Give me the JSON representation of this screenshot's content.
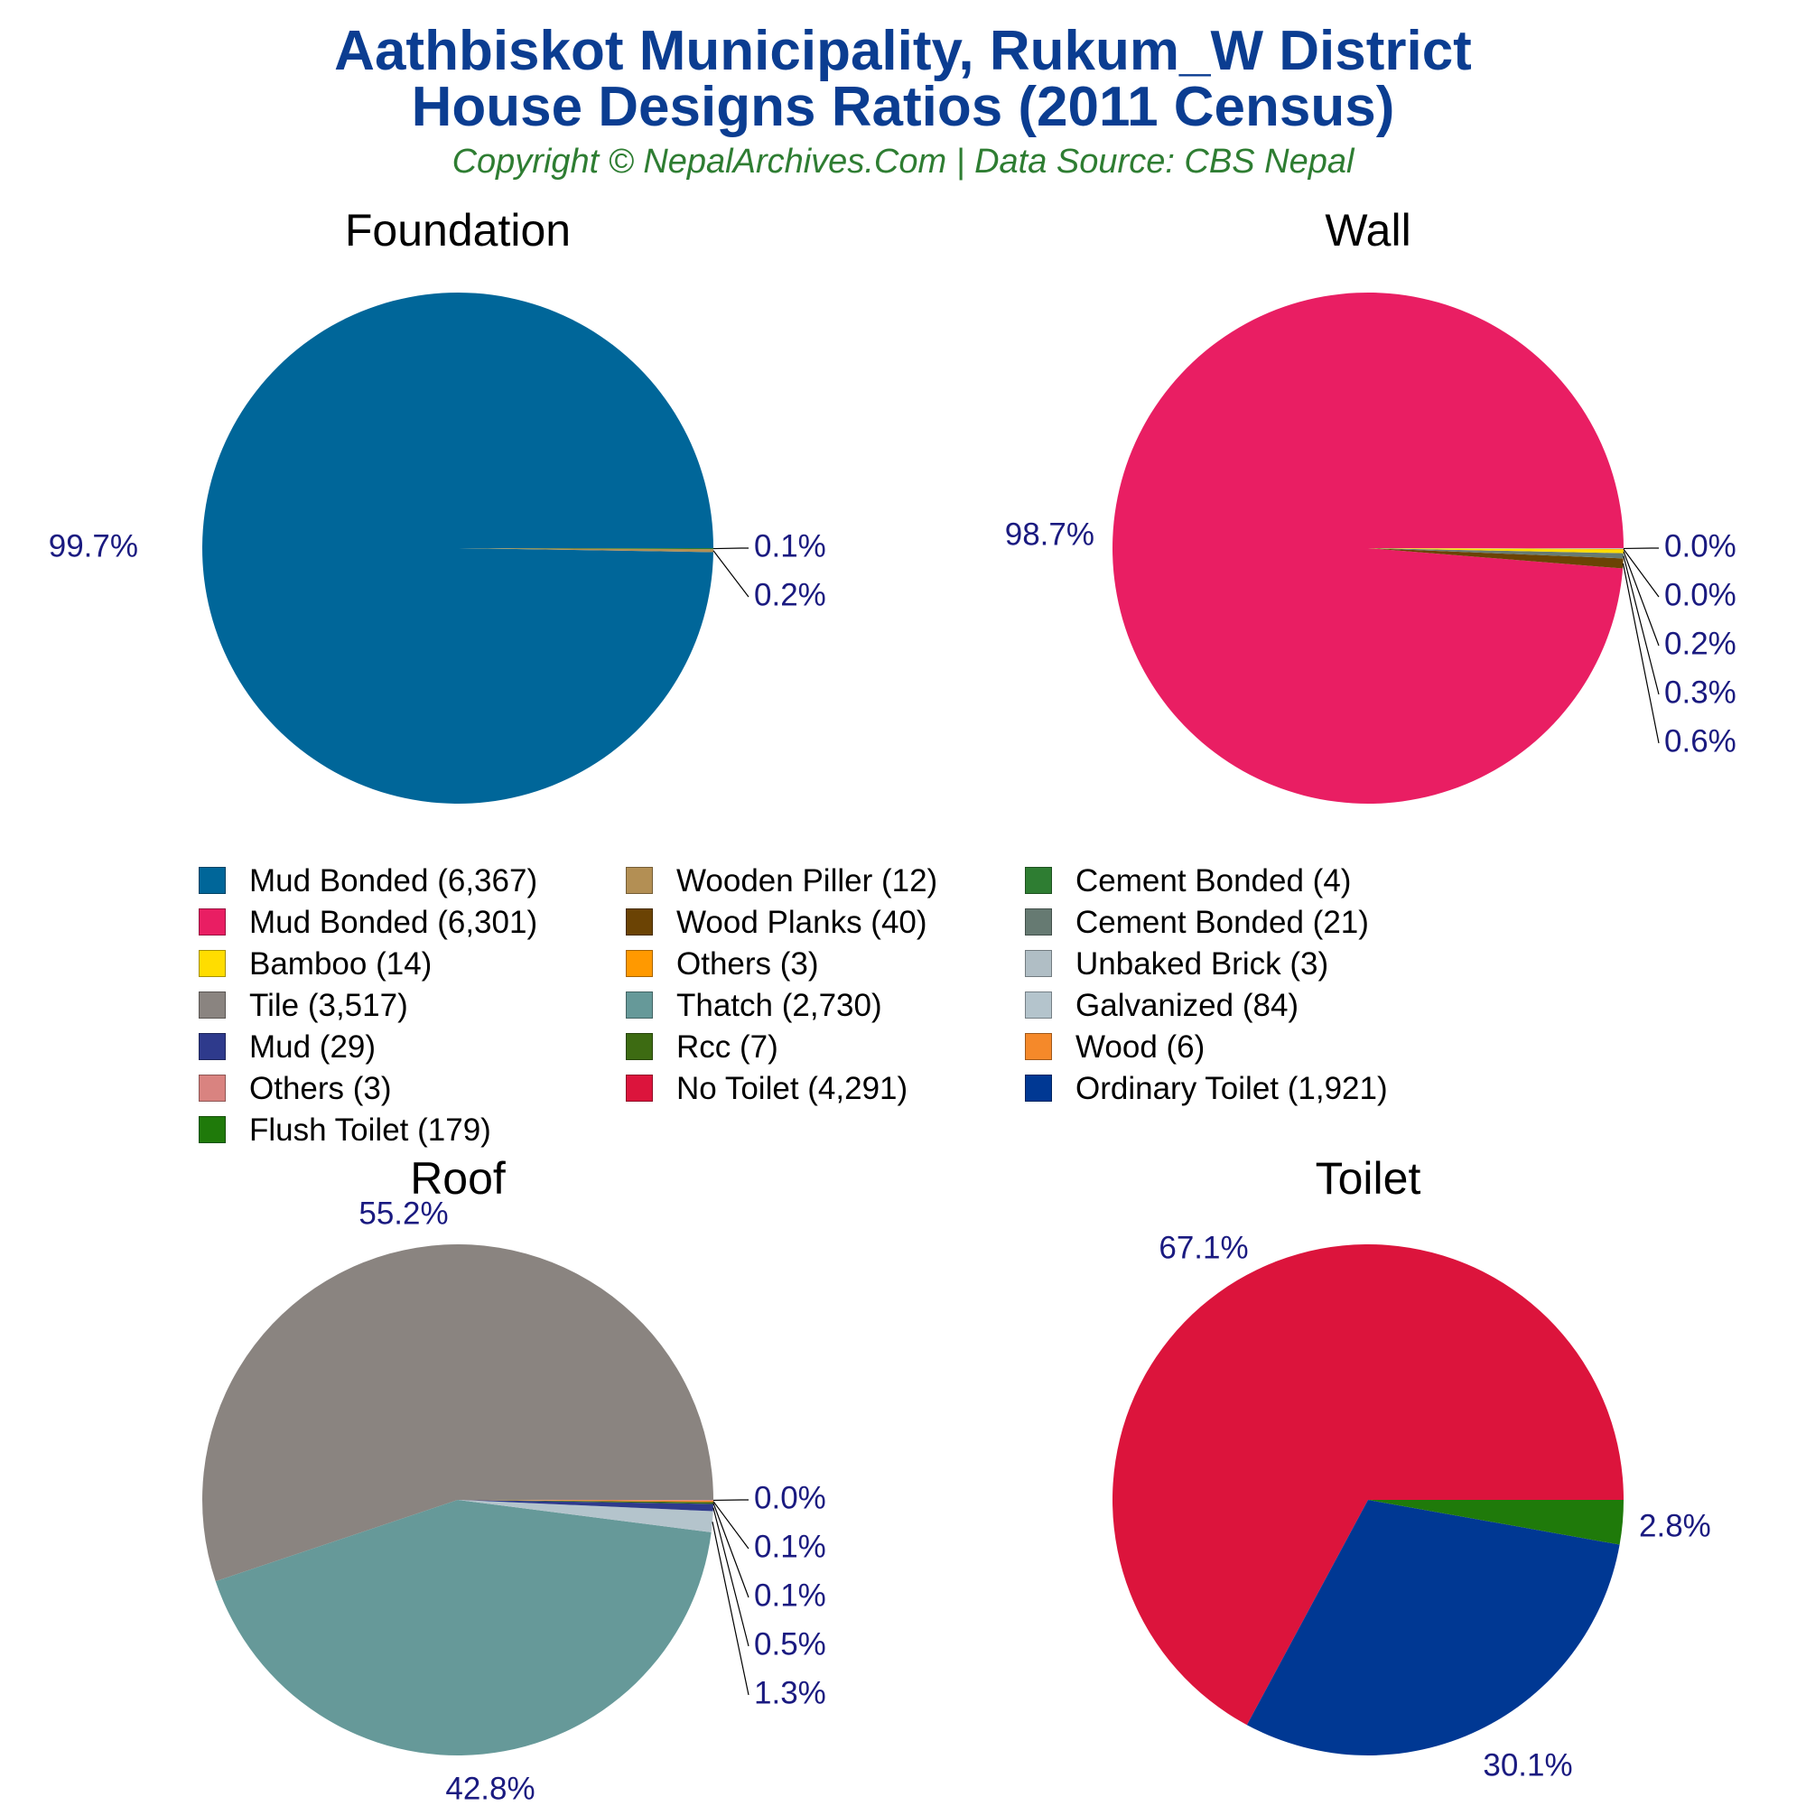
{
  "title": {
    "line1": "Aathbiskot Municipality, Rukum_W District",
    "line2": "House Designs Ratios (2011 Census)"
  },
  "subtitle": "Copyright © NepalArchives.Com | Data Source: CBS Nepal",
  "chart_data": [
    {
      "type": "pie",
      "title": "Foundation",
      "slices": [
        {
          "label": "Mud Bonded",
          "value": 6367,
          "percent_label": "99.7%",
          "color": "#006699"
        },
        {
          "label": "Wooden Piller",
          "value": 12,
          "percent_label": "0.2%",
          "color": "#b38f54"
        },
        {
          "label": "Cement Bonded",
          "value": 4,
          "percent_label": "0.1%",
          "color": "#2e7d32"
        }
      ]
    },
    {
      "type": "pie",
      "title": "Wall",
      "slices": [
        {
          "label": "Mud Bonded",
          "value": 6301,
          "percent_label": "98.7%",
          "color": "#e91e63"
        },
        {
          "label": "Wood Planks",
          "value": 40,
          "percent_label": "0.6%",
          "color": "#6b4304"
        },
        {
          "label": "Cement Bonded",
          "value": 21,
          "percent_label": "0.3%",
          "color": "#667a72"
        },
        {
          "label": "Bamboo",
          "value": 14,
          "percent_label": "0.2%",
          "color": "#ffdd00"
        },
        {
          "label": "Others",
          "value": 3,
          "percent_label": "0.0%",
          "color": "#ff9900"
        },
        {
          "label": "Unbaked Brick",
          "value": 3,
          "percent_label": "0.0%",
          "color": "#b0bec5"
        }
      ]
    },
    {
      "type": "pie",
      "title": "Roof",
      "slices": [
        {
          "label": "Tile",
          "value": 3517,
          "percent_label": "55.2%",
          "color": "#8a8480"
        },
        {
          "label": "Thatch",
          "value": 2730,
          "percent_label": "42.8%",
          "color": "#669999"
        },
        {
          "label": "Galvanized",
          "value": 84,
          "percent_label": "1.3%",
          "color": "#b4c4cc"
        },
        {
          "label": "Mud",
          "value": 29,
          "percent_label": "0.5%",
          "color": "#2e3a8c"
        },
        {
          "label": "Rcc",
          "value": 7,
          "percent_label": "0.1%",
          "color": "#3d6b12"
        },
        {
          "label": "Wood",
          "value": 6,
          "percent_label": "0.1%",
          "color": "#f5892a"
        },
        {
          "label": "Others",
          "value": 3,
          "percent_label": "0.0%",
          "color": "#d98380"
        }
      ]
    },
    {
      "type": "pie",
      "title": "Toilet",
      "slices": [
        {
          "label": "No Toilet",
          "value": 4291,
          "percent_label": "67.1%",
          "color": "#dc143c"
        },
        {
          "label": "Ordinary Toilet",
          "value": 1921,
          "percent_label": "30.1%",
          "color": "#003893"
        },
        {
          "label": "Flush Toilet",
          "value": 179,
          "percent_label": "2.8%",
          "color": "#1f7a0a"
        }
      ]
    }
  ],
  "legend": [
    {
      "label": "Mud Bonded (6,367)",
      "color": "#006699"
    },
    {
      "label": "Mud Bonded (6,301)",
      "color": "#e91e63"
    },
    {
      "label": "Bamboo (14)",
      "color": "#ffdd00"
    },
    {
      "label": "Tile (3,517)",
      "color": "#8a8480"
    },
    {
      "label": "Mud (29)",
      "color": "#2e3a8c"
    },
    {
      "label": "Others (3)",
      "color": "#d98380"
    },
    {
      "label": "Flush Toilet (179)",
      "color": "#1f7a0a"
    },
    {
      "label": "Wooden Piller (12)",
      "color": "#b38f54"
    },
    {
      "label": "Wood Planks (40)",
      "color": "#6b4304"
    },
    {
      "label": "Others (3)",
      "color": "#ff9900"
    },
    {
      "label": "Thatch (2,730)",
      "color": "#669999"
    },
    {
      "label": "Rcc (7)",
      "color": "#3d6b12"
    },
    {
      "label": "No Toilet (4,291)",
      "color": "#dc143c"
    },
    {
      "label": "Cement Bonded (4)",
      "color": "#2e7d32"
    },
    {
      "label": "Cement Bonded (21)",
      "color": "#667a72"
    },
    {
      "label": "Unbaked Brick (3)",
      "color": "#b0bec5"
    },
    {
      "label": "Galvanized (84)",
      "color": "#b4c4cc"
    },
    {
      "label": "Wood (6)",
      "color": "#f5892a"
    },
    {
      "label": "Ordinary Toilet (1,921)",
      "color": "#003893"
    }
  ]
}
